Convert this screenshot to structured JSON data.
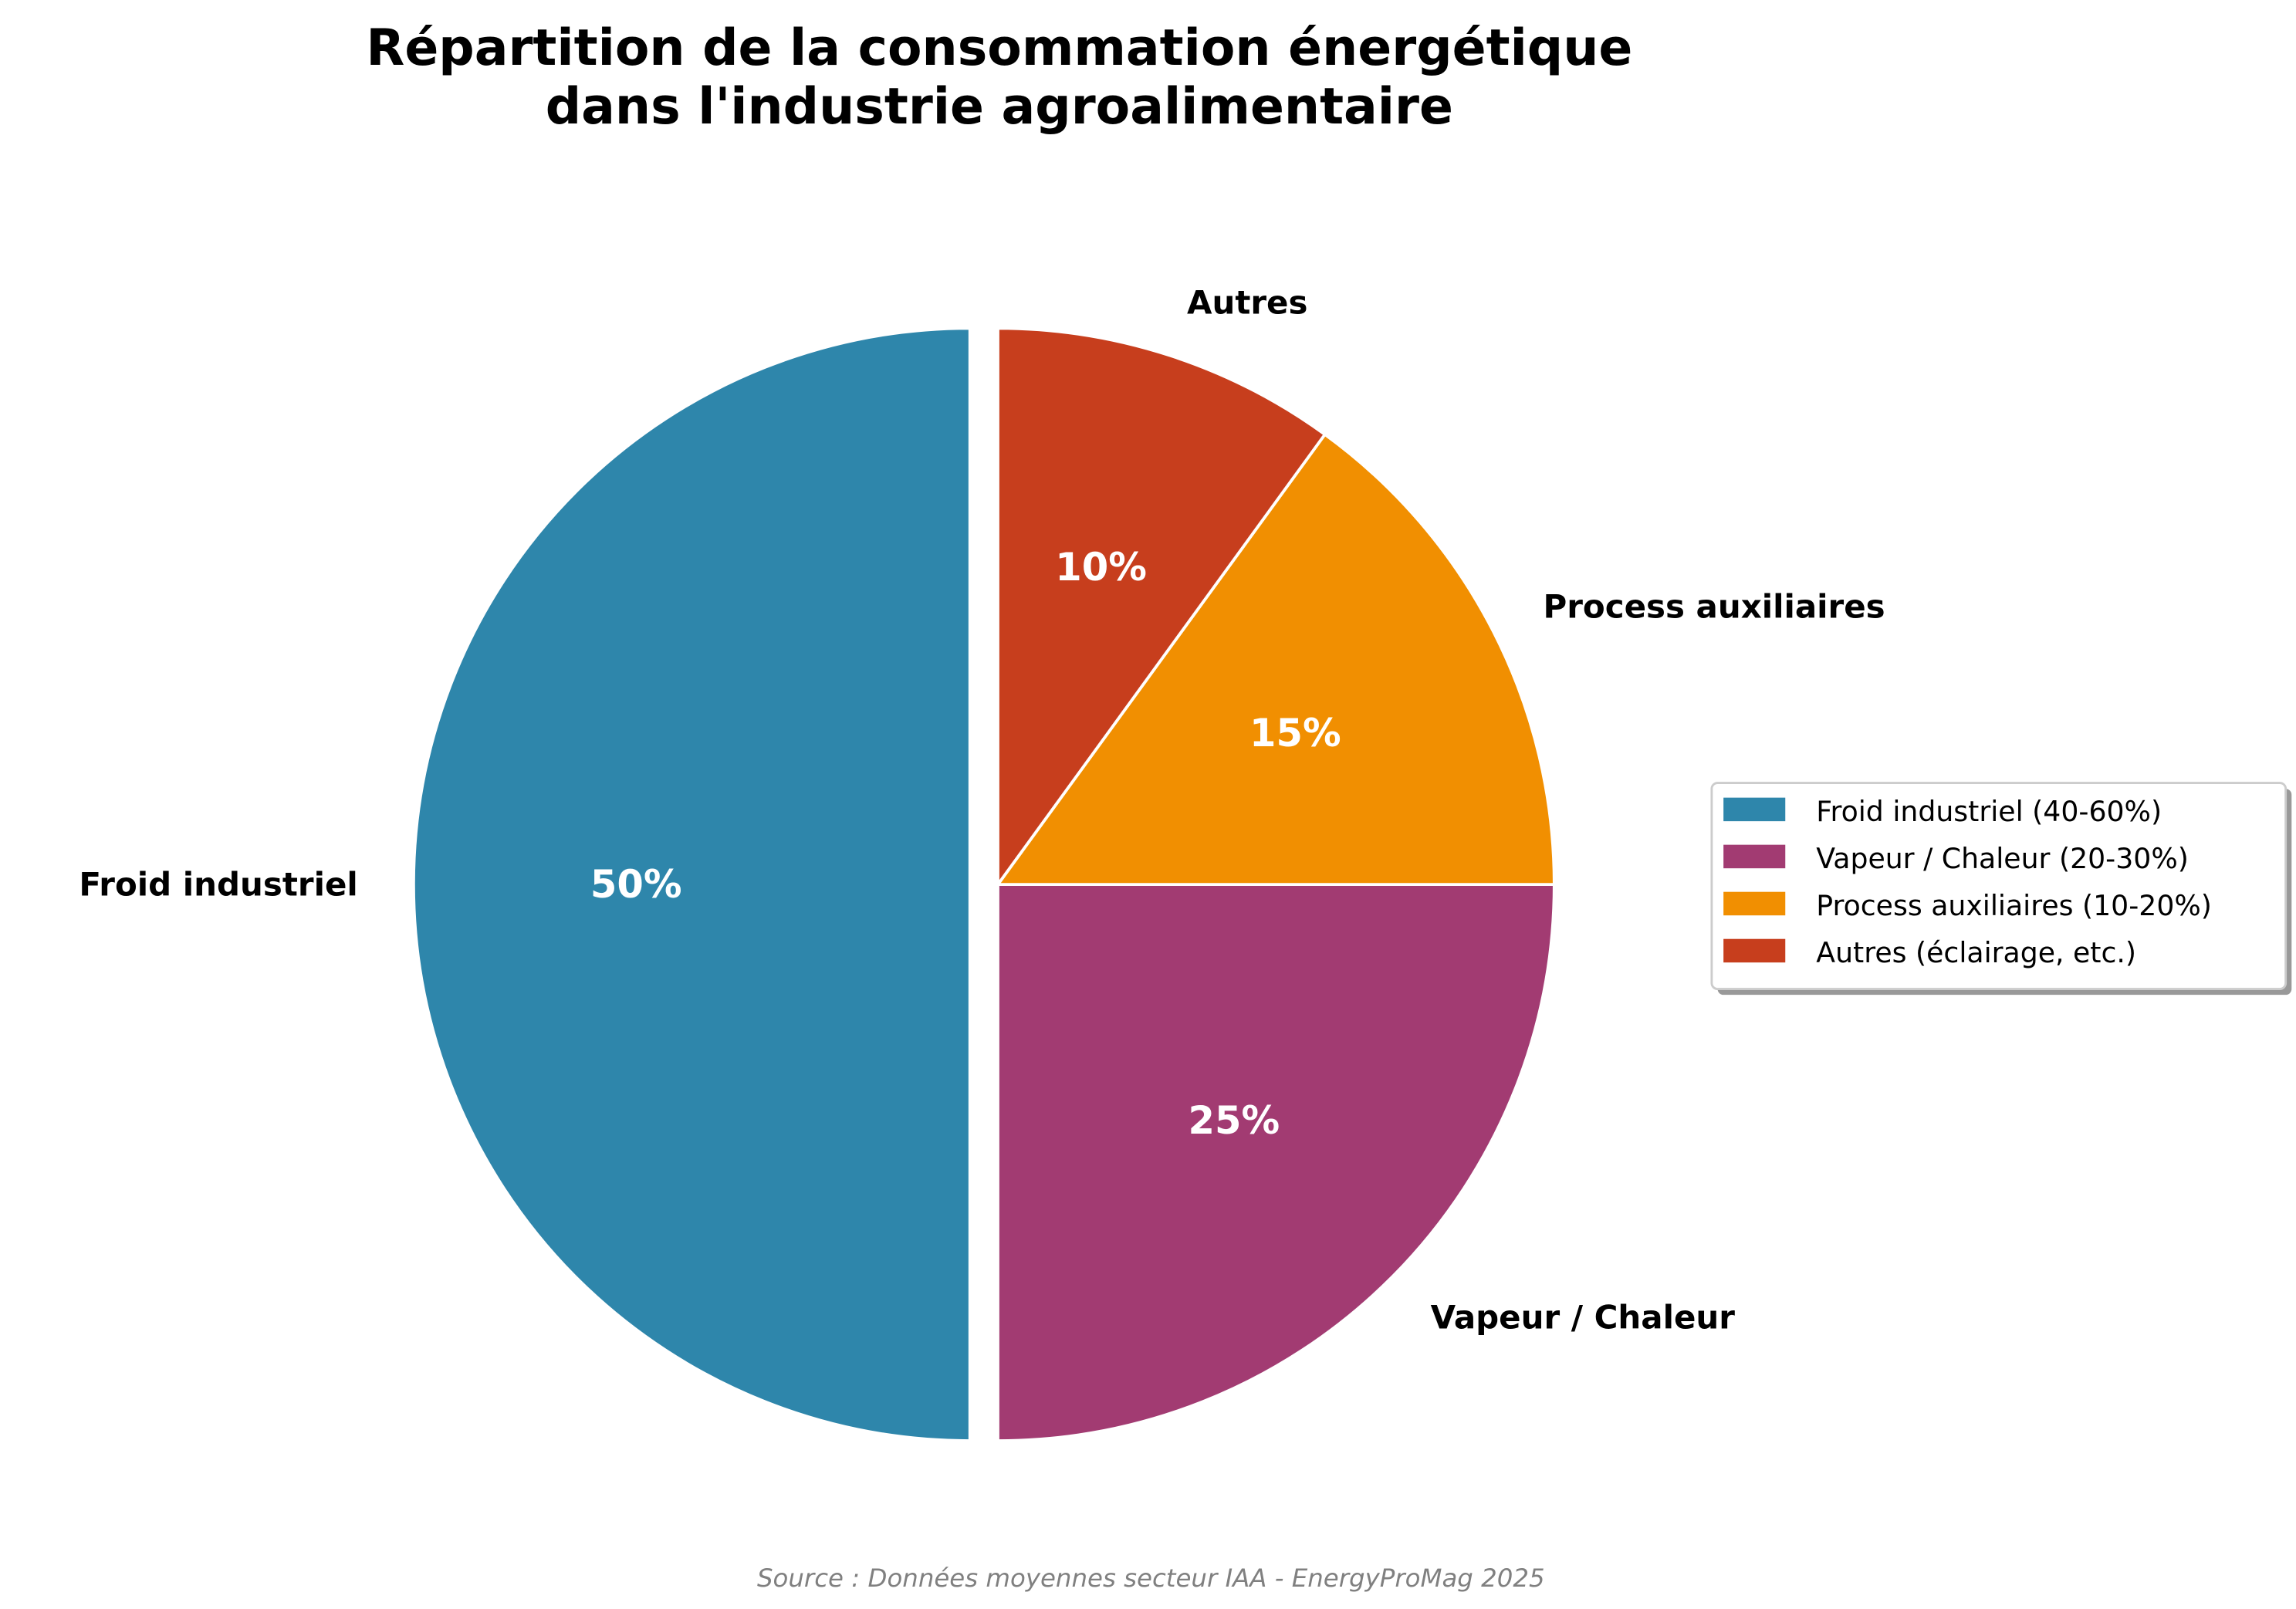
{
  "chart_data": {
    "type": "pie",
    "title": "Répartition de la consommation énergétique\ndans l'industrie agroalimentaire",
    "title_lines": [
      "Répartition de la consommation énergétique",
      "dans l'industrie agroalimentaire"
    ],
    "categories": [
      "Froid industriel",
      "Vapeur / Chaleur",
      "Process auxiliaires",
      "Autres"
    ],
    "values": [
      50,
      25,
      15,
      10
    ],
    "value_labels": [
      "50%",
      "25%",
      "15%",
      "10%"
    ],
    "colors": [
      "#2e86ab",
      "#a23b72",
      "#f18f01",
      "#c73e1d"
    ],
    "exploded": [
      true,
      false,
      false,
      false
    ],
    "start_angle": 90,
    "direction": "counterclockwise",
    "legend": {
      "placement": "right",
      "entries": [
        "Froid industriel (40-60%)",
        "Vapeur / Chaleur (20-30%)",
        "Process auxiliaires (10-20%)",
        "Autres (éclairage, etc.)"
      ]
    },
    "source": "Source : Données moyennes secteur IAA - EnergyProMag 2025"
  }
}
